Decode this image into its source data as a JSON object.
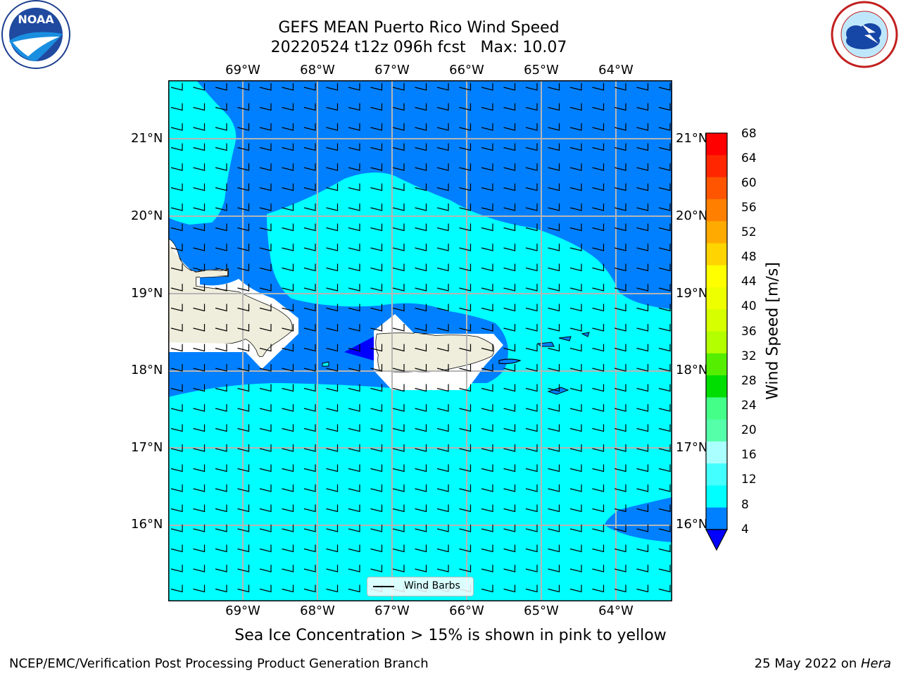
{
  "title": {
    "line1": "GEFS MEAN Puerto Rico Wind Speed",
    "line2": "20220524 t12z 096h fcst   Max: 10.07"
  },
  "logos": {
    "left": "noaa-logo",
    "right": "nws-logo"
  },
  "map": {
    "lon_labels": [
      "69°W",
      "68°W",
      "67°W",
      "66°W",
      "65°W",
      "64°W"
    ],
    "lat_labels": [
      "21°N",
      "20°N",
      "19°N",
      "18°N",
      "17°N",
      "16°N"
    ],
    "colors": {
      "light": "#00ffff",
      "mid": "#0080ff",
      "dark": "#0000ff",
      "land": "#efeedc",
      "grid": "#b5b5b5"
    },
    "legend_label": "Wind Barbs"
  },
  "colorbar": {
    "label": "Wind Speed [m/s]",
    "ticks": [
      "68",
      "64",
      "60",
      "56",
      "52",
      "48",
      "44",
      "40",
      "36",
      "32",
      "28",
      "24",
      "20",
      "16",
      "12",
      "8",
      "4"
    ],
    "colors": [
      "#ff0000",
      "#ff2600",
      "#ff5500",
      "#ff8000",
      "#ffaa00",
      "#ffd400",
      "#ffff00",
      "#eeff00",
      "#d6ff00",
      "#b3ff00",
      "#55ee00",
      "#00dd00",
      "#44ff88",
      "#55ffaa",
      "#aaffff",
      "#44ffff",
      "#00ffff",
      "#0080ff",
      "#0000ff"
    ]
  },
  "caption": "Sea Ice Concentration > 15% is shown in pink to yellow",
  "footer": {
    "left": "NCEP/EMC/Verification Post Processing Product Generation Branch",
    "date": "25 May 2022 on ",
    "machine": "Hera"
  }
}
